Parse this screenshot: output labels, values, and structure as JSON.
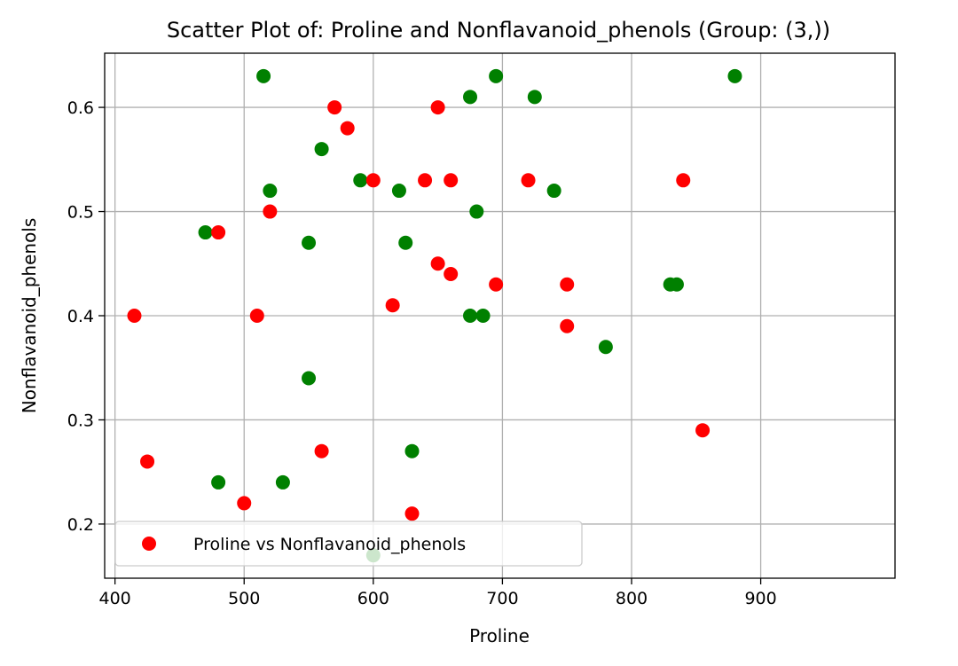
{
  "chart_data": {
    "type": "scatter",
    "title": "Scatter Plot of: Proline and Nonflavanoid_phenols (Group: (3,))",
    "xlabel": "Proline",
    "ylabel": "Nonflavanoid_phenols",
    "xlim": [
      392,
      1004
    ],
    "ylim": [
      0.148,
      0.652
    ],
    "xticks": [
      400,
      500,
      600,
      700,
      800,
      900
    ],
    "yticks": [
      0.2,
      0.3,
      0.4,
      0.5,
      0.6
    ],
    "xtick_labels": [
      "400",
      "500",
      "600",
      "700",
      "800",
      "900"
    ],
    "ytick_labels": [
      "0.2",
      "0.3",
      "0.4",
      "0.5",
      "0.6"
    ],
    "grid": true,
    "legend_position": "lower-left",
    "series": [
      {
        "name": "",
        "color": "#008000",
        "points": [
          [
            515,
            0.63
          ],
          [
            695,
            0.63
          ],
          [
            880,
            0.63
          ],
          [
            675,
            0.61
          ],
          [
            725,
            0.61
          ],
          [
            560,
            0.56
          ],
          [
            590,
            0.53
          ],
          [
            520,
            0.52
          ],
          [
            620,
            0.52
          ],
          [
            740,
            0.52
          ],
          [
            680,
            0.5
          ],
          [
            470,
            0.48
          ],
          [
            550,
            0.47
          ],
          [
            625,
            0.47
          ],
          [
            830,
            0.43
          ],
          [
            835,
            0.43
          ],
          [
            675,
            0.4
          ],
          [
            685,
            0.4
          ],
          [
            780,
            0.37
          ],
          [
            550,
            0.34
          ],
          [
            630,
            0.27
          ],
          [
            480,
            0.24
          ],
          [
            530,
            0.24
          ],
          [
            600,
            0.17
          ]
        ]
      },
      {
        "name": "Proline vs Nonflavanoid_phenols",
        "color": "#ff0000",
        "points": [
          [
            570,
            0.6
          ],
          [
            650,
            0.6
          ],
          [
            580,
            0.58
          ],
          [
            600,
            0.53
          ],
          [
            640,
            0.53
          ],
          [
            660,
            0.53
          ],
          [
            720,
            0.53
          ],
          [
            840,
            0.53
          ],
          [
            520,
            0.5
          ],
          [
            480,
            0.48
          ],
          [
            650,
            0.45
          ],
          [
            660,
            0.44
          ],
          [
            695,
            0.43
          ],
          [
            750,
            0.43
          ],
          [
            615,
            0.41
          ],
          [
            415,
            0.4
          ],
          [
            510,
            0.4
          ],
          [
            750,
            0.39
          ],
          [
            855,
            0.29
          ],
          [
            425,
            0.26
          ],
          [
            560,
            0.27
          ],
          [
            500,
            0.22
          ],
          [
            630,
            0.21
          ]
        ]
      }
    ],
    "legend": [
      {
        "label": "Proline vs Nonflavanoid_phenols",
        "color": "#ff0000"
      }
    ]
  }
}
